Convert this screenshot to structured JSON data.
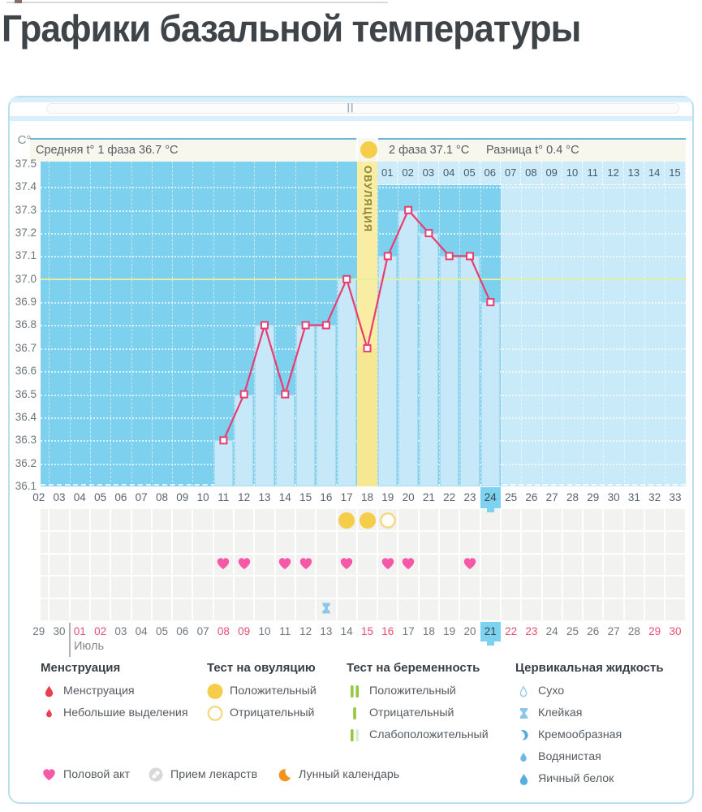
{
  "page": {
    "title": "Графики базальной температуры"
  },
  "panel": {
    "handle_label": "||"
  },
  "chart_data": {
    "type": "line",
    "unit_label": "C°",
    "stats": {
      "phase1_label": "Средняя t° 1 фаза 36.7 °C",
      "phase2_label": "2 фаза 37.1 °C",
      "diff_label": "Разница t° 0.4 °C"
    },
    "ovulation_column_label": "ОВУЛЯЦИЯ",
    "ylim": [
      36.1,
      37.5
    ],
    "y_ticks": [
      "37.5",
      "37.4",
      "37.3",
      "37.2",
      "37.1",
      "37.0",
      "36.9",
      "36.8",
      "36.7",
      "36.6",
      "36.5",
      "36.4",
      "36.3",
      "36.2",
      "36.1"
    ],
    "reference_temperature": 37.0,
    "cycle_day_labels": [
      "02",
      "03",
      "04",
      "05",
      "06",
      "07",
      "08",
      "09",
      "10",
      "11",
      "12",
      "13",
      "14",
      "15",
      "16",
      "17",
      "18",
      "19",
      "20",
      "21",
      "22",
      "23",
      "24",
      "25",
      "26",
      "27",
      "28",
      "29",
      "30",
      "31",
      "32",
      "33"
    ],
    "first_cycle_day": 2,
    "ovulation_day": 18,
    "current_cycle_day": 24,
    "phase2_day_labels": [
      "01",
      "02",
      "03",
      "04",
      "05",
      "06",
      "07",
      "08",
      "09",
      "10",
      "11",
      "12",
      "13",
      "14",
      "15"
    ],
    "temperatures": [
      {
        "day": 11,
        "temp": 36.3
      },
      {
        "day": 12,
        "temp": 36.5
      },
      {
        "day": 13,
        "temp": 36.8
      },
      {
        "day": 14,
        "temp": 36.5
      },
      {
        "day": 15,
        "temp": 36.8
      },
      {
        "day": 16,
        "temp": 36.8
      },
      {
        "day": 17,
        "temp": 37.0
      },
      {
        "day": 18,
        "temp": 36.7
      },
      {
        "day": 19,
        "temp": 37.1
      },
      {
        "day": 20,
        "temp": 37.3
      },
      {
        "day": 21,
        "temp": 37.2
      },
      {
        "day": 22,
        "temp": 37.1
      },
      {
        "day": 23,
        "temp": 37.1
      },
      {
        "day": 24,
        "temp": 36.9
      }
    ],
    "ovulation_tests": [
      {
        "day": 17,
        "result": "positive"
      },
      {
        "day": 18,
        "result": "positive"
      },
      {
        "day": 19,
        "result": "negative"
      }
    ],
    "intercourse_days": [
      11,
      12,
      14,
      15,
      17,
      19,
      20,
      23
    ],
    "cervical_fluid_entries": [
      {
        "day": 16,
        "type": "sticky"
      }
    ],
    "calendar": {
      "month_label": "Июль",
      "month_starts_after_index": 1,
      "highlight_cycle_day": 24,
      "dates": [
        {
          "label": "29",
          "weekend": false
        },
        {
          "label": "30",
          "weekend": false
        },
        {
          "label": "01",
          "weekend": true
        },
        {
          "label": "02",
          "weekend": true
        },
        {
          "label": "03",
          "weekend": false
        },
        {
          "label": "04",
          "weekend": false
        },
        {
          "label": "05",
          "weekend": false
        },
        {
          "label": "06",
          "weekend": false
        },
        {
          "label": "07",
          "weekend": false
        },
        {
          "label": "08",
          "weekend": true
        },
        {
          "label": "09",
          "weekend": true
        },
        {
          "label": "10",
          "weekend": false
        },
        {
          "label": "11",
          "weekend": false
        },
        {
          "label": "12",
          "weekend": false
        },
        {
          "label": "13",
          "weekend": false
        },
        {
          "label": "14",
          "weekend": false
        },
        {
          "label": "15",
          "weekend": true
        },
        {
          "label": "16",
          "weekend": true
        },
        {
          "label": "17",
          "weekend": false
        },
        {
          "label": "18",
          "weekend": false
        },
        {
          "label": "19",
          "weekend": false
        },
        {
          "label": "20",
          "weekend": false
        },
        {
          "label": "21",
          "weekend": false
        },
        {
          "label": "22",
          "weekend": true
        },
        {
          "label": "23",
          "weekend": true
        },
        {
          "label": "24",
          "weekend": false
        },
        {
          "label": "25",
          "weekend": false
        },
        {
          "label": "26",
          "weekend": false
        },
        {
          "label": "27",
          "weekend": false
        },
        {
          "label": "28",
          "weekend": false
        },
        {
          "label": "29",
          "weekend": true
        },
        {
          "label": "30",
          "weekend": true
        }
      ]
    }
  },
  "legend": {
    "sections": [
      {
        "title": "Менструация",
        "items": [
          {
            "icon": "drop-red-large",
            "label": "Менструация"
          },
          {
            "icon": "drop-red-small",
            "label": "Небольшие выделения"
          }
        ]
      },
      {
        "title": "Тест на овуляцию",
        "items": [
          {
            "icon": "circle-yellow-filled",
            "label": "Положительный"
          },
          {
            "icon": "circle-yellow-outline",
            "label": "Отрицательный"
          }
        ]
      },
      {
        "title": "Тест на беременность",
        "items": [
          {
            "icon": "bars-two-green",
            "label": "Положительный"
          },
          {
            "icon": "bar-one-green",
            "label": "Отрицательный"
          },
          {
            "icon": "bars-green-faded",
            "label": "Слабоположительный"
          }
        ]
      },
      {
        "title": "Цервикальная жидкость",
        "items": [
          {
            "icon": "drop-outline",
            "label": "Сухо"
          },
          {
            "icon": "ibeam",
            "label": "Клейкая"
          },
          {
            "icon": "drop-curved",
            "label": "Кремообразная"
          },
          {
            "icon": "drop-small-blue",
            "label": "Водянистая"
          },
          {
            "icon": "drop-large-blue",
            "label": "Яичный белок"
          }
        ]
      }
    ],
    "bottom_items": [
      {
        "icon": "heart-pink",
        "label": "Половой акт"
      },
      {
        "icon": "pill-gray",
        "label": "Прием лекарств"
      },
      {
        "icon": "moon-orange",
        "label": "Лунный календарь"
      }
    ]
  },
  "colors": {
    "line": "#e73e72",
    "plot_bg": "#7dd1ef",
    "future_bg": "#c8eaf9",
    "bar": "#c6e8f8",
    "cells": "#cdebf9",
    "ovulation_column": "#f8eda3",
    "reference_line": "#e3ee9e",
    "current_day_bg": "#7cd2ef",
    "weekend_red": "#e84f6e",
    "heart_pink": "#f558a7",
    "test_yellow": "#f5cd49",
    "pregnancy_green": "#95c840",
    "fluid_blue": "#6db7e8",
    "menstruation_red": "#e8424e",
    "moon_orange": "#f0941f"
  }
}
